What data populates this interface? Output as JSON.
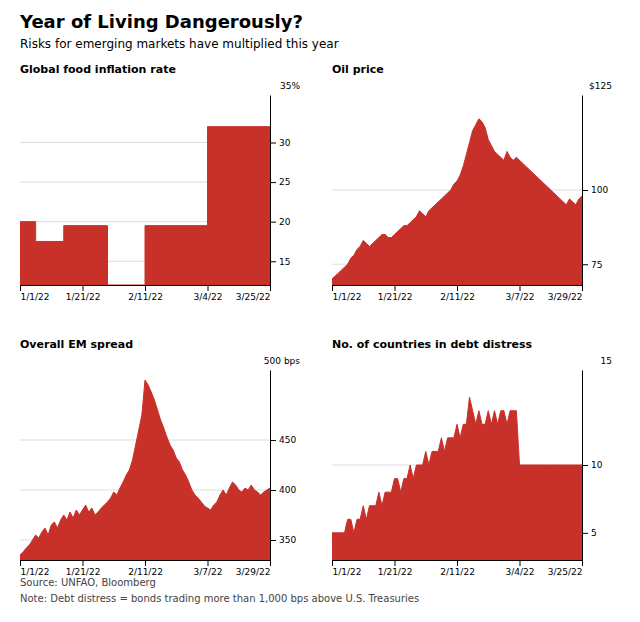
{
  "title": "Year of Living Dangerously?",
  "subtitle": "Risks for emerging markets have multiplied this year",
  "source": "Source: UNFAO, Bloomberg",
  "note": "Note: Debt distress = bonds trading more than 1,000 bps above U.S. Treasuries",
  "chart_data": [
    {
      "type": "area",
      "title": "Global food inflation rate",
      "ylabel": "35%",
      "color": "#C8312A",
      "grid": true,
      "xlim": [
        0,
        80
      ],
      "ylim": [
        12,
        36
      ],
      "yticks": [
        15,
        20,
        25,
        30
      ],
      "xticks": [
        {
          "value": 0,
          "label": "1/1/22"
        },
        {
          "value": 20,
          "label": "1/21/22"
        },
        {
          "value": 40,
          "label": "2/11/22"
        },
        {
          "value": 60,
          "label": "3/4/22"
        },
        {
          "value": 80,
          "label": "3/25/22"
        }
      ],
      "x": [
        0,
        5,
        5.01,
        14,
        14.01,
        28,
        28.01,
        40,
        40.01,
        60,
        60.01,
        80
      ],
      "values": [
        20,
        20,
        17.5,
        17.5,
        19.5,
        19.5,
        12,
        12,
        19.5,
        19.5,
        32,
        32
      ]
    },
    {
      "type": "area",
      "title": "Oil price",
      "ylabel": "$125",
      "color": "#C8312A",
      "grid": true,
      "xlim": [
        0,
        80
      ],
      "ylim": [
        68,
        132
      ],
      "yticks": [
        75,
        100
      ],
      "xticks": [
        {
          "value": 0,
          "label": "1/1/22"
        },
        {
          "value": 20,
          "label": "1/21/22"
        },
        {
          "value": 40,
          "label": "2/11/22"
        },
        {
          "value": 60,
          "label": "3/7/22"
        },
        {
          "value": 80,
          "label": "3/29/22"
        }
      ],
      "x": [
        0,
        1,
        2,
        3,
        4,
        5,
        6,
        7,
        8,
        9,
        10,
        11,
        12,
        13,
        14,
        15,
        16,
        17,
        18,
        19,
        20,
        21,
        22,
        23,
        24,
        25,
        26,
        27,
        28,
        29,
        30,
        31,
        32,
        33,
        34,
        35,
        36,
        37,
        38,
        39,
        40,
        41,
        42,
        43,
        44,
        45,
        46,
        47,
        48,
        49,
        50,
        51,
        52,
        53,
        54,
        55,
        56,
        57,
        58,
        59,
        60,
        61,
        62,
        63,
        64,
        65,
        66,
        67,
        68,
        69,
        70,
        71,
        72,
        73,
        74,
        75,
        76,
        77,
        78,
        79,
        80
      ],
      "values": [
        70,
        71,
        72,
        73,
        74,
        75,
        77,
        78,
        80,
        81,
        83,
        82,
        81,
        82,
        83,
        84,
        85,
        85,
        84,
        84,
        85,
        86,
        87,
        88,
        88,
        89,
        90,
        91,
        93,
        92,
        91,
        93,
        94,
        95,
        96,
        97,
        98,
        99,
        100,
        102,
        103,
        105,
        108,
        112,
        116,
        120,
        122,
        124,
        123,
        121,
        117,
        115,
        113,
        112,
        111,
        110,
        113,
        111,
        110,
        111,
        110,
        109,
        108,
        107,
        106,
        105,
        104,
        103,
        102,
        101,
        100,
        99,
        98,
        97,
        96,
        95,
        97,
        96,
        95,
        97,
        98
      ]
    },
    {
      "type": "area",
      "title": "Overall EM spread",
      "ylabel": "500 bps",
      "color": "#C8312A",
      "grid": true,
      "xlim": [
        0,
        80
      ],
      "ylim": [
        330,
        520
      ],
      "yticks": [
        350,
        400,
        450
      ],
      "xticks": [
        {
          "value": 0,
          "label": "1/1/22"
        },
        {
          "value": 20,
          "label": "1/21/22"
        },
        {
          "value": 40,
          "label": "2/11/22"
        },
        {
          "value": 60,
          "label": "3/7/22"
        },
        {
          "value": 80,
          "label": "3/29/22"
        }
      ],
      "x": [
        0,
        1,
        2,
        3,
        4,
        5,
        6,
        7,
        8,
        9,
        10,
        11,
        12,
        13,
        14,
        15,
        16,
        17,
        18,
        19,
        20,
        21,
        22,
        23,
        24,
        25,
        26,
        27,
        28,
        29,
        30,
        31,
        32,
        33,
        34,
        35,
        36,
        37,
        38,
        39,
        40,
        41,
        42,
        43,
        44,
        45,
        46,
        47,
        48,
        49,
        50,
        51,
        52,
        53,
        54,
        55,
        56,
        57,
        58,
        59,
        60,
        61,
        62,
        63,
        64,
        65,
        66,
        67,
        68,
        69,
        70,
        71,
        72,
        73,
        74,
        75,
        76,
        77,
        78,
        79,
        80
      ],
      "values": [
        335,
        338,
        342,
        345,
        350,
        355,
        352,
        358,
        362,
        355,
        365,
        368,
        362,
        370,
        375,
        370,
        378,
        372,
        380,
        375,
        380,
        385,
        378,
        382,
        375,
        378,
        382,
        385,
        388,
        392,
        398,
        395,
        402,
        408,
        415,
        420,
        430,
        445,
        460,
        475,
        510,
        505,
        498,
        490,
        480,
        470,
        462,
        453,
        445,
        440,
        432,
        428,
        420,
        415,
        408,
        400,
        395,
        392,
        388,
        384,
        382,
        380,
        385,
        388,
        395,
        400,
        395,
        402,
        408,
        405,
        400,
        398,
        402,
        400,
        405,
        400,
        398,
        395,
        398,
        400,
        402
      ]
    },
    {
      "type": "area",
      "title": "No. of countries in debt distress",
      "ylabel": "15",
      "color": "#C8312A",
      "grid": true,
      "xlim": [
        0,
        80
      ],
      "ylim": [
        3,
        17
      ],
      "yticks": [
        5,
        10
      ],
      "xticks": [
        {
          "value": 0,
          "label": "1/1/22"
        },
        {
          "value": 20,
          "label": "1/21/22"
        },
        {
          "value": 40,
          "label": "2/11/22"
        },
        {
          "value": 60,
          "label": "3/4/22"
        },
        {
          "value": 80,
          "label": "3/25/22"
        }
      ],
      "x": [
        0,
        1,
        2,
        3,
        4,
        5,
        6,
        7,
        8,
        9,
        10,
        11,
        12,
        13,
        14,
        15,
        16,
        17,
        18,
        19,
        20,
        21,
        22,
        23,
        24,
        25,
        26,
        27,
        28,
        29,
        30,
        31,
        32,
        33,
        34,
        35,
        36,
        37,
        38,
        39,
        40,
        41,
        42,
        43,
        44,
        45,
        46,
        47,
        48,
        49,
        50,
        51,
        52,
        53,
        54,
        55,
        56,
        57,
        58,
        59,
        60,
        61,
        62,
        63,
        64,
        65,
        66,
        67,
        68,
        69,
        70,
        71,
        72,
        73,
        74,
        75,
        76,
        77,
        78,
        79,
        80
      ],
      "values": [
        5,
        5,
        5,
        5,
        5,
        6,
        6,
        5,
        6,
        6,
        7,
        6,
        7,
        7,
        7,
        8,
        7,
        8,
        8,
        8,
        9,
        9,
        8,
        9,
        9,
        10,
        9,
        10,
        10,
        10,
        11,
        10,
        11,
        11,
        11,
        12,
        11,
        12,
        12,
        12,
        13,
        12,
        13,
        13,
        15,
        14,
        13,
        14,
        13,
        13,
        14,
        13,
        14,
        13,
        14,
        14,
        13,
        14,
        14,
        14,
        10,
        10,
        10,
        10,
        10,
        10,
        10,
        10,
        10,
        10,
        10,
        10,
        10,
        10,
        10,
        10,
        10,
        10,
        10,
        10,
        10
      ]
    }
  ]
}
